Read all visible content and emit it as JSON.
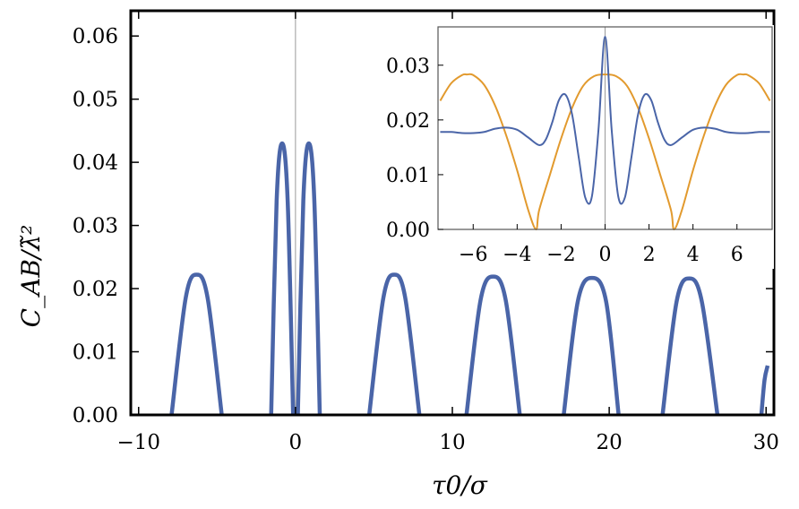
{
  "chart_data": [
    {
      "type": "line",
      "title": "",
      "xlabel": "τ0/σ",
      "ylabel": "C_AB/λ̃²",
      "xlim": [
        -10.5,
        30.5
      ],
      "ylim": [
        0,
        0.064
      ],
      "x_ticks": [
        -10,
        0,
        10,
        20,
        30
      ],
      "y_ticks": [
        0.0,
        0.01,
        0.02,
        0.03,
        0.04,
        0.05,
        0.06
      ],
      "x_tick_labels": [
        "−10",
        "0",
        "10",
        "20",
        "30"
      ],
      "y_tick_labels": [
        "0.00",
        "0.01",
        "0.02",
        "0.03",
        "0.04",
        "0.05",
        "0.06"
      ],
      "grid": false,
      "series": [
        {
          "color": "#4a65a8",
          "lobes": [
            {
              "x": [
                -7.9,
                -7.0,
                -6.3,
                -5.6,
                -4.7
              ],
              "y": [
                0.0,
                0.0185,
                0.0222,
                0.0185,
                0.0
              ]
            },
            {
              "x": [
                -1.55,
                -1.2,
                -0.85,
                -0.5,
                -0.15
              ],
              "y": [
                0.0,
                0.034,
                0.043,
                0.034,
                0.0
              ]
            },
            {
              "x": [
                0.15,
                0.5,
                0.85,
                1.2,
                1.55
              ],
              "y": [
                0.0,
                0.034,
                0.043,
                0.034,
                0.0
              ]
            },
            {
              "x": [
                4.7,
                5.6,
                6.3,
                7.0,
                7.9
              ],
              "y": [
                0.0,
                0.0185,
                0.0222,
                0.0185,
                0.0
              ]
            },
            {
              "x": [
                10.9,
                11.8,
                12.6,
                13.4,
                14.3
              ],
              "y": [
                0.0,
                0.0182,
                0.0219,
                0.0182,
                0.0
              ]
            },
            {
              "x": [
                17.1,
                18.0,
                18.9,
                19.8,
                20.6
              ],
              "y": [
                0.0,
                0.018,
                0.0217,
                0.018,
                0.0
              ]
            },
            {
              "x": [
                23.4,
                24.3,
                25.1,
                25.9,
                26.9
              ],
              "y": [
                0.0,
                0.018,
                0.0216,
                0.018,
                0.0
              ]
            },
            {
              "x": [
                29.7,
                29.9,
                30.1
              ],
              "y": [
                0.0,
                0.0055,
                0.0078
              ]
            }
          ]
        },
        {
          "color": "#e29a2e",
          "x": [
            -10.5,
            30.5
          ],
          "y": [
            0.0,
            0.0
          ]
        }
      ]
    },
    {
      "type": "line",
      "title": "",
      "xlabel": "",
      "ylabel": "",
      "xlim": [
        -7.6,
        7.6
      ],
      "ylim": [
        0,
        0.037
      ],
      "x_ticks": [
        -6,
        -4,
        -2,
        0,
        2,
        4,
        6
      ],
      "y_ticks": [
        0.0,
        0.01,
        0.02,
        0.03
      ],
      "x_tick_labels": [
        "−6",
        "−4",
        "−2",
        "0",
        "2",
        "4",
        "6"
      ],
      "y_tick_labels": [
        "0.00",
        "0.01",
        "0.02",
        "0.03"
      ],
      "grid": false,
      "series": [
        {
          "color": "#4a65a8",
          "x": [
            -7.5,
            -7.0,
            -6.5,
            -6.0,
            -5.5,
            -5.0,
            -4.5,
            -4.0,
            -3.5,
            -3.0,
            -2.7,
            -2.4,
            -2.1,
            -1.8,
            -1.5,
            -1.2,
            -0.9,
            -0.6,
            -0.3,
            0.0,
            0.3,
            0.6,
            0.9,
            1.2,
            1.5,
            1.8,
            2.1,
            2.4,
            2.7,
            3.0,
            3.5,
            4.0,
            4.5,
            5.0,
            5.5,
            6.0,
            6.5,
            7.0,
            7.5
          ],
          "y": [
            0.0178,
            0.0178,
            0.0176,
            0.0176,
            0.0178,
            0.0184,
            0.0186,
            0.0182,
            0.0168,
            0.0154,
            0.0164,
            0.0196,
            0.0236,
            0.0246,
            0.021,
            0.0132,
            0.0058,
            0.006,
            0.0182,
            0.0352,
            0.0182,
            0.006,
            0.0058,
            0.0132,
            0.021,
            0.0246,
            0.0236,
            0.0196,
            0.0164,
            0.0154,
            0.0168,
            0.0182,
            0.0186,
            0.0184,
            0.0178,
            0.0176,
            0.0176,
            0.0178,
            0.0178
          ]
        },
        {
          "color": "#e29a2e",
          "x": [
            -7.5,
            -7.0,
            -6.5,
            -6.28,
            -6.0,
            -5.5,
            -5.0,
            -4.5,
            -4.0,
            -3.5,
            -3.14,
            -3.0,
            -2.5,
            -2.0,
            -1.5,
            -1.0,
            -0.5,
            0.0,
            0.5,
            1.0,
            1.5,
            2.0,
            2.5,
            3.0,
            3.14,
            3.5,
            4.0,
            4.5,
            5.0,
            5.5,
            6.0,
            6.28,
            6.5,
            7.0,
            7.5
          ],
          "y": [
            0.0235,
            0.0267,
            0.0282,
            0.0283,
            0.0282,
            0.0264,
            0.0226,
            0.0172,
            0.0108,
            0.0036,
            0.0,
            0.0035,
            0.0101,
            0.0166,
            0.0222,
            0.0262,
            0.028,
            0.0283,
            0.028,
            0.0262,
            0.0222,
            0.0166,
            0.0101,
            0.0035,
            0.0,
            0.0036,
            0.0108,
            0.0172,
            0.0226,
            0.0264,
            0.0282,
            0.0283,
            0.0282,
            0.0267,
            0.0235
          ]
        }
      ]
    }
  ]
}
